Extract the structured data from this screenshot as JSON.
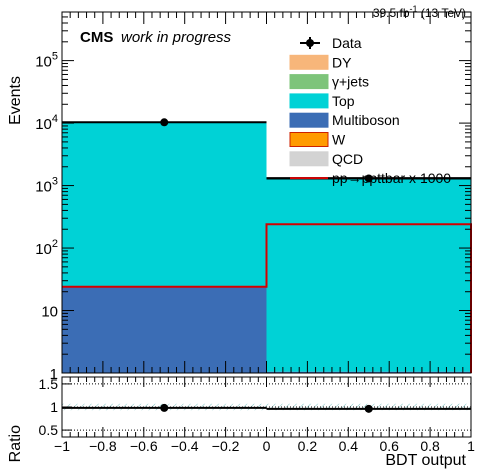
{
  "chart_data": {
    "type": "bar",
    "lumi_label": "39.5 fb",
    "lumi_sup": "-1",
    "lumi_energy": " (13 TeV)",
    "cms_label": "CMS",
    "cms_sub": "work in progress",
    "ylabel": "Events",
    "ratio_ylabel": "Ratio",
    "xlabel": "BDT output",
    "x_range": [
      -1,
      1
    ],
    "y_range_log": [
      1,
      600000
    ],
    "bins": [
      [
        -1,
        0
      ],
      [
        0,
        1
      ]
    ],
    "x_ticks": [
      "−1",
      "−0.8",
      "−0.6",
      "−0.4",
      "−0.2",
      "0",
      "0.2",
      "0.4",
      "0.6",
      "0.8",
      "1"
    ],
    "x_tick_values": [
      -1,
      -0.8,
      -0.6,
      -0.4,
      -0.2,
      0,
      0.2,
      0.4,
      0.6,
      0.8,
      1
    ],
    "y_ticks": [
      {
        "value": 1,
        "base": "1",
        "exp": ""
      },
      {
        "value": 10,
        "base": "10",
        "exp": ""
      },
      {
        "value": 100,
        "base": "10",
        "exp": "2"
      },
      {
        "value": 1000,
        "base": "10",
        "exp": "3"
      },
      {
        "value": 10000,
        "base": "10",
        "exp": "4"
      },
      {
        "value": 100000,
        "base": "10",
        "exp": "5"
      }
    ],
    "ratio_range": [
      0.35,
      1.65
    ],
    "ratio_ticks": [
      {
        "value": 0.5,
        "label": "0.5"
      },
      {
        "value": 1,
        "label": "1"
      },
      {
        "value": 1.5,
        "label": "1.5"
      }
    ],
    "stack": [
      {
        "name": "Multiboson",
        "color": "#3b6db5",
        "values": [
          24,
          1.05
        ]
      },
      {
        "name": "Top",
        "color": "#00d2d6",
        "values": [
          10300,
          1330
        ]
      },
      {
        "name": "DY",
        "color": "#f7b67a",
        "values": [
          0,
          8
        ]
      }
    ],
    "signal": {
      "name": "pp→ppttbar x 1000",
      "color": "#d40000",
      "values": [
        24,
        240
      ]
    },
    "data_points": {
      "name": "Data",
      "x": [
        -0.5,
        0.5
      ],
      "y": [
        10300,
        1300
      ]
    },
    "ratio_points": {
      "x": [
        -0.5,
        0.5
      ],
      "y": [
        0.98,
        0.96
      ]
    },
    "legend": [
      {
        "name": "Data",
        "kind": "marker",
        "color": "#000000"
      },
      {
        "name": "DY",
        "kind": "box",
        "color": "#f7b67a",
        "edge": "#f7b67a"
      },
      {
        "name": "γ+jets",
        "kind": "box",
        "color": "#7dc47a",
        "edge": "#7dc47a"
      },
      {
        "name": "Top",
        "kind": "box",
        "color": "#00d2d6",
        "edge": "#00d2d6"
      },
      {
        "name": "Multiboson",
        "kind": "box",
        "color": "#3b6db5",
        "edge": "#3b6db5"
      },
      {
        "name": "W",
        "kind": "box",
        "color": "#ff9b00",
        "edge": "#cc2200"
      },
      {
        "name": "QCD",
        "kind": "box",
        "color": "#d3d3d3",
        "edge": "#d3d3d3"
      },
      {
        "name": "pp→ppttbar x 1000",
        "kind": "line",
        "color": "#d40000"
      }
    ]
  }
}
